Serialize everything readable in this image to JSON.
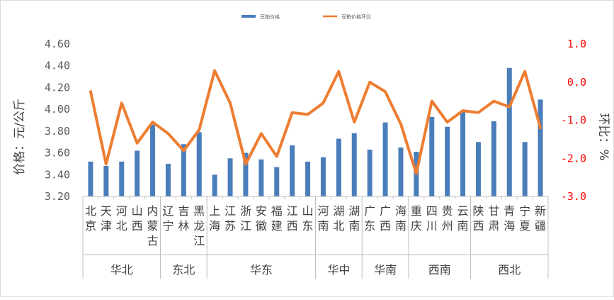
{
  "chart_data": {
    "type": "bar+line",
    "legend_position": "top",
    "ylabel": "价格：元/公斤",
    "y2label": "环比：%",
    "ylim": [
      3.2,
      4.6
    ],
    "y2lim": [
      -3.0,
      1.0
    ],
    "yticks": [
      "3.20",
      "3.40",
      "3.60",
      "3.80",
      "4.00",
      "4.20",
      "4.40",
      "4.60"
    ],
    "y2ticks": [
      "-3.0",
      "-2.0",
      "-1.0",
      "0.0",
      "1.0"
    ],
    "y2_color": "#ff0000",
    "categories": [
      "北京",
      "天津",
      "河北",
      "山西",
      "内蒙古",
      "辽宁",
      "吉林",
      "黑龙江",
      "上海",
      "江苏",
      "浙江",
      "安徽",
      "福建",
      "江西",
      "山东",
      "河南",
      "湖北",
      "湖南",
      "广东",
      "广西",
      "海南",
      "重庆",
      "四川",
      "贵州",
      "云南",
      "陕西",
      "甘肃",
      "青海",
      "宁夏",
      "新疆"
    ],
    "groups": [
      {
        "name": "华北",
        "count": 5
      },
      {
        "name": "东北",
        "count": 3
      },
      {
        "name": "华东",
        "count": 7
      },
      {
        "name": "华中",
        "count": 3
      },
      {
        "name": "华南",
        "count": 3
      },
      {
        "name": "西南",
        "count": 4
      },
      {
        "name": "西北",
        "count": 5
      }
    ],
    "series": [
      {
        "name": "豆粕价格",
        "type": "bar",
        "axis": "left",
        "color": "#4a7ebb",
        "values": [
          3.52,
          3.48,
          3.52,
          3.62,
          3.86,
          3.5,
          3.68,
          3.79,
          3.4,
          3.55,
          3.6,
          3.54,
          3.47,
          3.67,
          3.52,
          3.56,
          3.73,
          3.78,
          3.63,
          3.88,
          3.65,
          3.61,
          3.93,
          3.84,
          3.98,
          3.7,
          3.89,
          4.38,
          3.7,
          4.09
        ]
      },
      {
        "name": "豆粕价格环比",
        "type": "line",
        "axis": "right",
        "color": "#ed7d31",
        "values": [
          -0.25,
          -2.15,
          -0.55,
          -1.6,
          -1.05,
          -1.35,
          -1.8,
          -1.25,
          0.3,
          -0.55,
          -2.15,
          -1.35,
          -1.95,
          -0.8,
          -0.85,
          -0.55,
          0.28,
          -1.05,
          0.0,
          -0.25,
          -1.1,
          -2.4,
          -0.5,
          -1.05,
          -0.75,
          -0.8,
          -0.5,
          -0.65,
          0.28,
          -1.2
        ]
      }
    ]
  }
}
